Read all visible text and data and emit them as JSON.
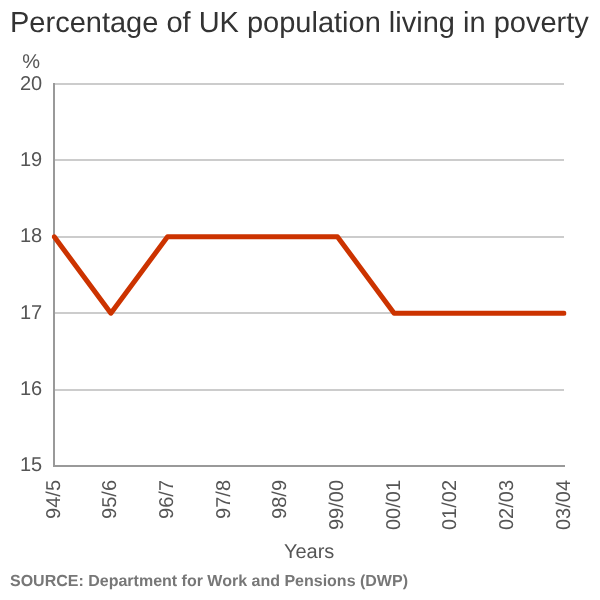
{
  "chart_data": {
    "type": "line",
    "title": "Percentage of UK population living in poverty",
    "ylabel": "%",
    "xlabel": "Years",
    "categories": [
      "94/5",
      "95/6",
      "96/7",
      "97/8",
      "98/9",
      "99/00",
      "00/01",
      "01/02",
      "02/03",
      "03/04"
    ],
    "series": [
      {
        "color": "#cc3300",
        "values": [
          18,
          17,
          18,
          18,
          18,
          18,
          17,
          17,
          17,
          17
        ]
      }
    ],
    "ylim": [
      15,
      20
    ],
    "yticks": [
      15,
      16,
      17,
      18,
      19,
      20
    ],
    "grid": "y",
    "legend": false,
    "marker": "none",
    "line_style": "solid",
    "annotations": [
      "SOURCE: Department for Work and Pensions (DWP)"
    ]
  }
}
